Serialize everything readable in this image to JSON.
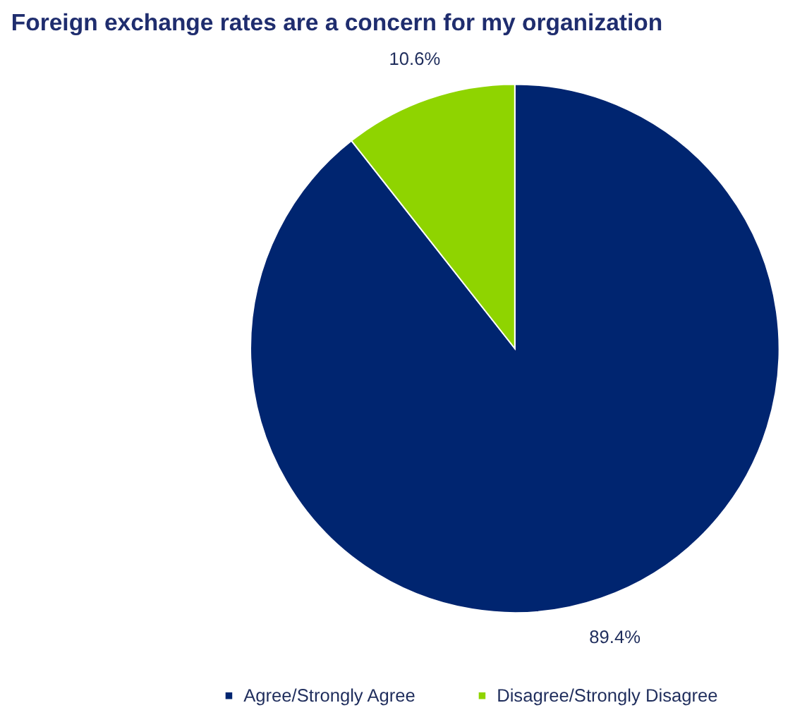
{
  "chart_data": {
    "type": "pie",
    "title": "Foreign exchange rates are a concern for my organization",
    "categories": [
      "Agree/Strongly Agree",
      "Disagree/Strongly Disagree"
    ],
    "values": [
      89.4,
      10.6
    ],
    "colors": [
      "#002570",
      "#8fd400"
    ],
    "value_labels": [
      "89.4%",
      "10.6%"
    ],
    "legend": "bottom"
  }
}
